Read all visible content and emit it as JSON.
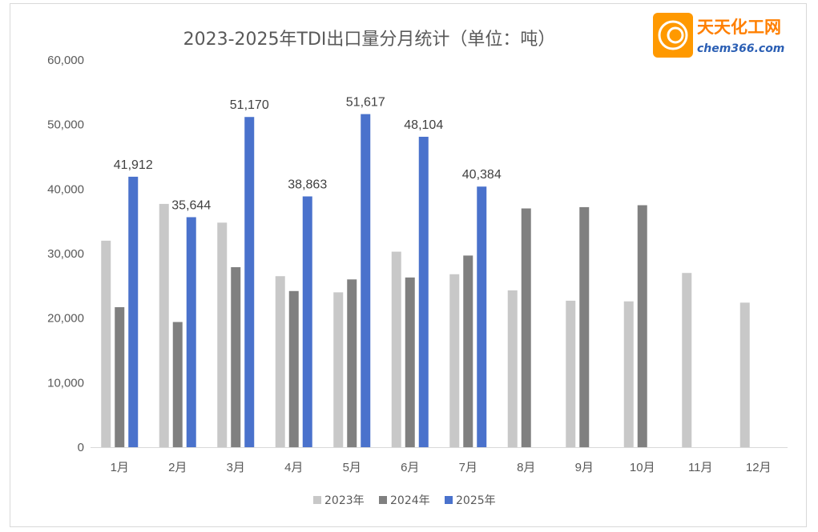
{
  "logo": {
    "name_cn": "天天化工网",
    "domain": "chem366.com",
    "colors": {
      "primary": "#ff9900",
      "text_cn": "#ff7f00",
      "text_en": "#2b5fb4"
    }
  },
  "chart_data": {
    "type": "bar",
    "title": "2023-2025年TDI出口量分月统计（单位：吨）",
    "xlabel": "",
    "ylabel": "",
    "ylim": [
      0,
      60000
    ],
    "y_ticks": [
      "0",
      "10,000",
      "20,000",
      "30,000",
      "40,000",
      "50,000",
      "60,000"
    ],
    "grid": false,
    "legend_position": "bottom",
    "categories": [
      "1月",
      "2月",
      "3月",
      "4月",
      "5月",
      "6月",
      "7月",
      "8月",
      "9月",
      "10月",
      "11月",
      "12月"
    ],
    "series": [
      {
        "name": "2023年",
        "color": "#c8c8c8",
        "values": [
          32000,
          37700,
          34800,
          26500,
          24000,
          30300,
          26800,
          24300,
          22700,
          22600,
          27000,
          22400
        ],
        "labels": []
      },
      {
        "name": "2024年",
        "color": "#808080",
        "values": [
          21700,
          19400,
          27900,
          24200,
          26000,
          26300,
          29700,
          37000,
          37200,
          37500,
          null,
          null
        ],
        "labels": []
      },
      {
        "name": "2025年",
        "color": "#4a72cc",
        "values": [
          41912,
          35644,
          51170,
          38863,
          51617,
          48104,
          40384,
          null,
          null,
          null,
          null,
          null
        ],
        "labels": [
          "41,912",
          "35,644",
          "51,170",
          "38,863",
          "51,617",
          "48,104",
          "40,384",
          "",
          "",
          "",
          "",
          ""
        ]
      }
    ]
  }
}
